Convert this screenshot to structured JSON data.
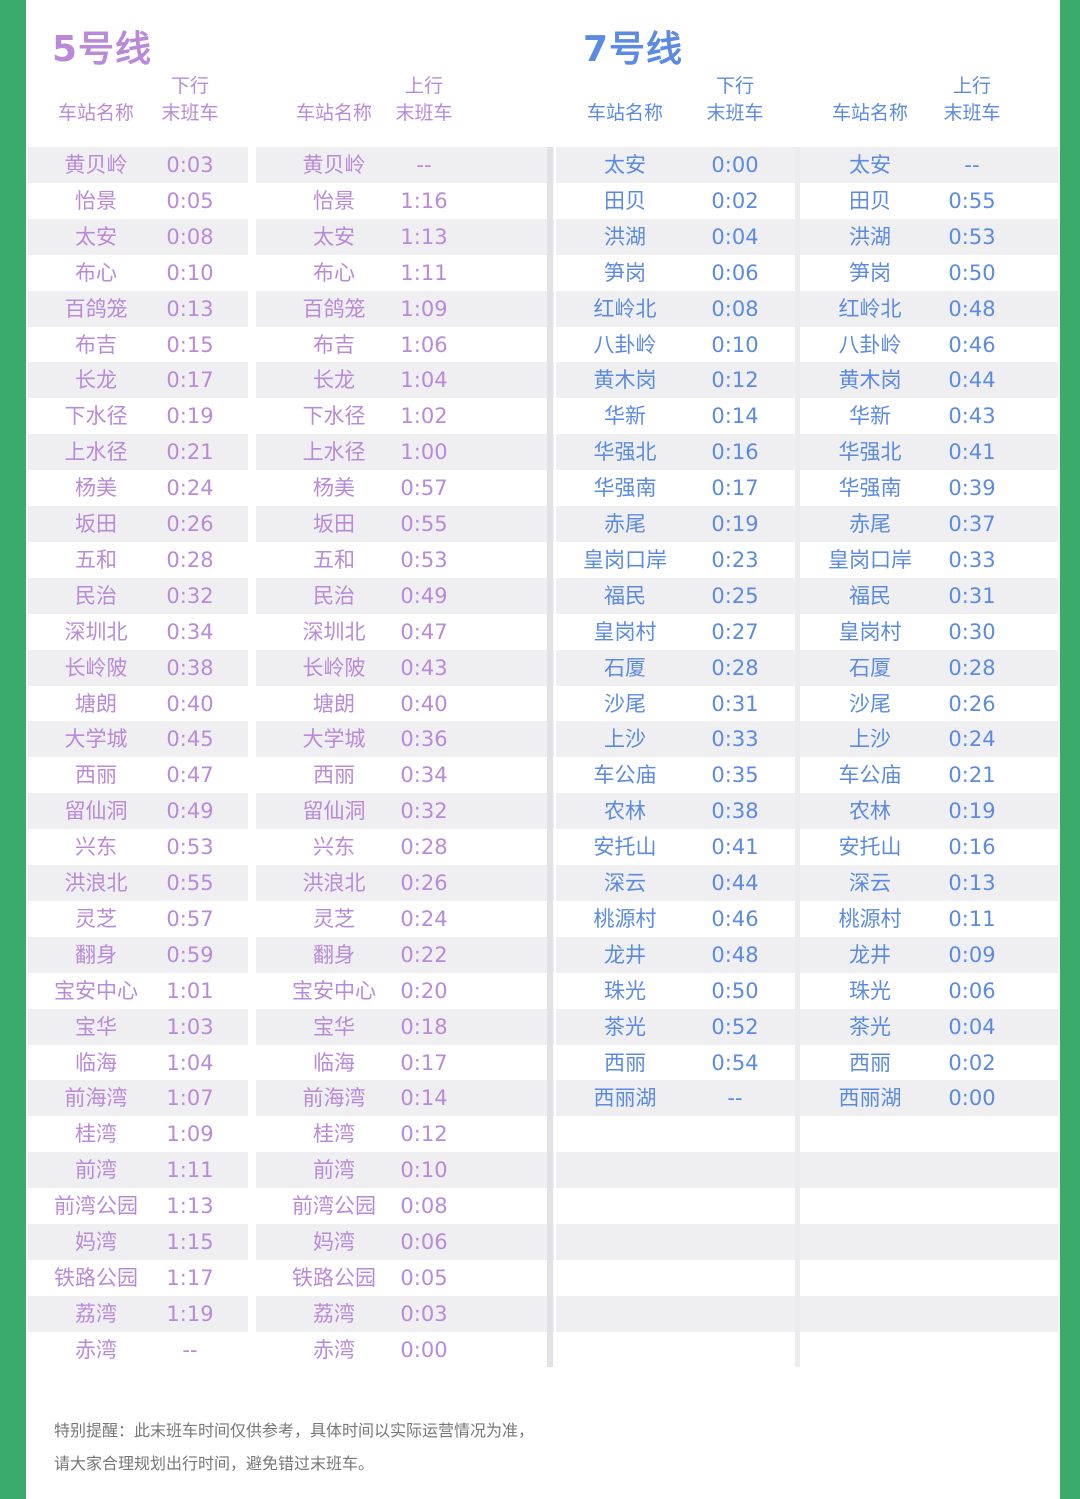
{
  "colors": {
    "line5": "#b98ad9",
    "line7": "#5b8be0",
    "border": "#3aab6b"
  },
  "line5": {
    "title": "5号线",
    "headers": {
      "down_dir": "下行",
      "up_dir": "上行",
      "station": "车站名称",
      "last_train": "末班车"
    },
    "rows": [
      [
        "黄贝岭",
        "0:03",
        "--"
      ],
      [
        "怡景",
        "0:05",
        "1:16"
      ],
      [
        "太安",
        "0:08",
        "1:13"
      ],
      [
        "布心",
        "0:10",
        "1:11"
      ],
      [
        "百鸽笼",
        "0:13",
        "1:09"
      ],
      [
        "布吉",
        "0:15",
        "1:06"
      ],
      [
        "长龙",
        "0:17",
        "1:04"
      ],
      [
        "下水径",
        "0:19",
        "1:02"
      ],
      [
        "上水径",
        "0:21",
        "1:00"
      ],
      [
        "杨美",
        "0:24",
        "0:57"
      ],
      [
        "坂田",
        "0:26",
        "0:55"
      ],
      [
        "五和",
        "0:28",
        "0:53"
      ],
      [
        "民治",
        "0:32",
        "0:49"
      ],
      [
        "深圳北",
        "0:34",
        "0:47"
      ],
      [
        "长岭陂",
        "0:38",
        "0:43"
      ],
      [
        "塘朗",
        "0:40",
        "0:40"
      ],
      [
        "大学城",
        "0:45",
        "0:36"
      ],
      [
        "西丽",
        "0:47",
        "0:34"
      ],
      [
        "留仙洞",
        "0:49",
        "0:32"
      ],
      [
        "兴东",
        "0:53",
        "0:28"
      ],
      [
        "洪浪北",
        "0:55",
        "0:26"
      ],
      [
        "灵芝",
        "0:57",
        "0:24"
      ],
      [
        "翻身",
        "0:59",
        "0:22"
      ],
      [
        "宝安中心",
        "1:01",
        "0:20"
      ],
      [
        "宝华",
        "1:03",
        "0:18"
      ],
      [
        "临海",
        "1:04",
        "0:17"
      ],
      [
        "前海湾",
        "1:07",
        "0:14"
      ],
      [
        "桂湾",
        "1:09",
        "0:12"
      ],
      [
        "前湾",
        "1:11",
        "0:10"
      ],
      [
        "前湾公园",
        "1:13",
        "0:08"
      ],
      [
        "妈湾",
        "1:15",
        "0:06"
      ],
      [
        "铁路公园",
        "1:17",
        "0:05"
      ],
      [
        "荔湾",
        "1:19",
        "0:03"
      ],
      [
        "赤湾",
        "--",
        "0:00"
      ]
    ]
  },
  "line7": {
    "title": "7号线",
    "headers": {
      "down_dir": "下行",
      "up_dir": "上行",
      "station": "车站名称",
      "last_train": "末班车"
    },
    "rows": [
      [
        "太安",
        "0:00",
        "--"
      ],
      [
        "田贝",
        "0:02",
        "0:55"
      ],
      [
        "洪湖",
        "0:04",
        "0:53"
      ],
      [
        "笋岗",
        "0:06",
        "0:50"
      ],
      [
        "红岭北",
        "0:08",
        "0:48"
      ],
      [
        "八卦岭",
        "0:10",
        "0:46"
      ],
      [
        "黄木岗",
        "0:12",
        "0:44"
      ],
      [
        "华新",
        "0:14",
        "0:43"
      ],
      [
        "华强北",
        "0:16",
        "0:41"
      ],
      [
        "华强南",
        "0:17",
        "0:39"
      ],
      [
        "赤尾",
        "0:19",
        "0:37"
      ],
      [
        "皇岗口岸",
        "0:23",
        "0:33"
      ],
      [
        "福民",
        "0:25",
        "0:31"
      ],
      [
        "皇岗村",
        "0:27",
        "0:30"
      ],
      [
        "石厦",
        "0:28",
        "0:28"
      ],
      [
        "沙尾",
        "0:31",
        "0:26"
      ],
      [
        "上沙",
        "0:33",
        "0:24"
      ],
      [
        "车公庙",
        "0:35",
        "0:21"
      ],
      [
        "农林",
        "0:38",
        "0:19"
      ],
      [
        "安托山",
        "0:41",
        "0:16"
      ],
      [
        "深云",
        "0:44",
        "0:13"
      ],
      [
        "桃源村",
        "0:46",
        "0:11"
      ],
      [
        "龙井",
        "0:48",
        "0:09"
      ],
      [
        "珠光",
        "0:50",
        "0:06"
      ],
      [
        "茶光",
        "0:52",
        "0:04"
      ],
      [
        "西丽",
        "0:54",
        "0:02"
      ],
      [
        "西丽湖",
        "--",
        "0:00"
      ]
    ]
  },
  "note": {
    "line1": "特别提醒：此末班车时间仅供参考，具体时间以实际运营情况为准，",
    "line2": "请大家合理规划出行时间，避免错过末班车。"
  }
}
